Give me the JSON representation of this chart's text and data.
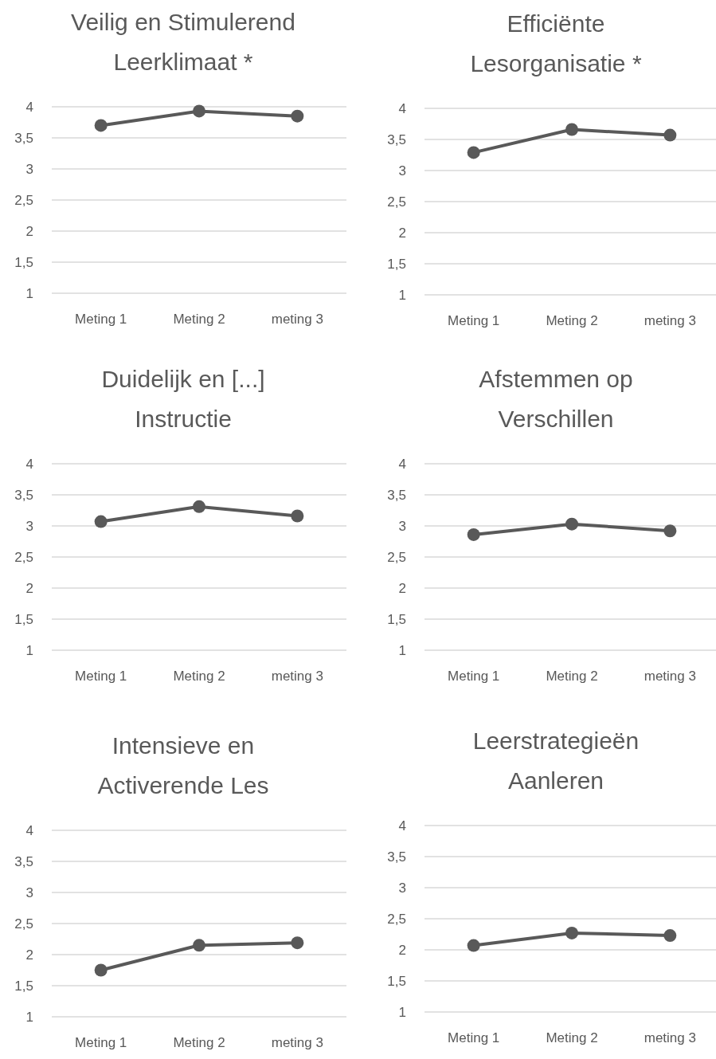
{
  "chart_data": [
    {
      "type": "line",
      "title": "Veilig en Stimulerend\nLeerklimaat *",
      "categories": [
        "Meting 1",
        "Meting 2",
        "meting 3"
      ],
      "values": [
        3.7,
        3.93,
        3.85
      ],
      "color": "#595959",
      "marker": "circle",
      "line_style": "solid",
      "grid": "y",
      "ylim": [
        1,
        4
      ],
      "yticks": [
        1,
        {
          "value": 1.5,
          "label": "1,5"
        },
        2,
        {
          "value": 2.5,
          "label": "2,5"
        },
        3,
        {
          "value": 3.5,
          "label": "3,5"
        },
        4
      ]
    },
    {
      "type": "line",
      "title": "Efficiënte\nLesorganisatie *",
      "categories": [
        "Meting 1",
        "Meting 2",
        "meting 3"
      ],
      "values": [
        3.29,
        3.66,
        3.57
      ],
      "color": "#595959",
      "marker": "circle",
      "line_style": "solid",
      "grid": "y",
      "ylim": [
        1,
        4
      ],
      "yticks": [
        1,
        {
          "value": 1.5,
          "label": "1,5"
        },
        2,
        {
          "value": 2.5,
          "label": "2,5"
        },
        3,
        {
          "value": 3.5,
          "label": "3,5"
        },
        4
      ]
    },
    {
      "type": "line",
      "title": "Duidelijk en [...]\nInstructie",
      "categories": [
        "Meting 1",
        "Meting 2",
        "meting 3"
      ],
      "values": [
        3.07,
        3.31,
        3.16
      ],
      "color": "#595959",
      "marker": "circle",
      "line_style": "solid",
      "grid": "y",
      "ylim": [
        1,
        4
      ],
      "yticks": [
        1,
        {
          "value": 1.5,
          "label": "1,5"
        },
        2,
        {
          "value": 2.5,
          "label": "2,5"
        },
        3,
        {
          "value": 3.5,
          "label": "3,5"
        },
        4
      ]
    },
    {
      "type": "line",
      "title": "Afstemmen op\nVerschillen",
      "categories": [
        "Meting 1",
        "Meting 2",
        "meting 3"
      ],
      "values": [
        2.86,
        3.03,
        2.92
      ],
      "color": "#595959",
      "marker": "circle",
      "line_style": "solid",
      "grid": "y",
      "ylim": [
        1,
        4
      ],
      "yticks": [
        1,
        {
          "value": 1.5,
          "label": "1,5"
        },
        2,
        {
          "value": 2.5,
          "label": "2,5"
        },
        3,
        {
          "value": 3.5,
          "label": "3,5"
        },
        4
      ]
    },
    {
      "type": "line",
      "title": "Intensieve en\nActiverende Les",
      "categories": [
        "Meting 1",
        "Meting 2",
        "meting 3"
      ],
      "values": [
        1.75,
        2.15,
        2.19
      ],
      "color": "#595959",
      "marker": "circle",
      "line_style": "solid",
      "grid": "y",
      "ylim": [
        1,
        4
      ],
      "yticks": [
        1,
        {
          "value": 1.5,
          "label": "1,5"
        },
        2,
        {
          "value": 2.5,
          "label": "2,5"
        },
        3,
        {
          "value": 3.5,
          "label": "3,5"
        },
        4
      ]
    },
    {
      "type": "line",
      "title": "Leerstrategieën\nAanleren",
      "categories": [
        "Meting 1",
        "Meting 2",
        "meting 3"
      ],
      "values": [
        2.07,
        2.27,
        2.23
      ],
      "color": "#595959",
      "marker": "circle",
      "line_style": "solid",
      "grid": "y",
      "ylim": [
        1,
        4
      ],
      "yticks": [
        1,
        {
          "value": 1.5,
          "label": "1,5"
        },
        2,
        {
          "value": 2.5,
          "label": "2,5"
        },
        3,
        {
          "value": 3.5,
          "label": "3,5"
        },
        4
      ]
    }
  ]
}
